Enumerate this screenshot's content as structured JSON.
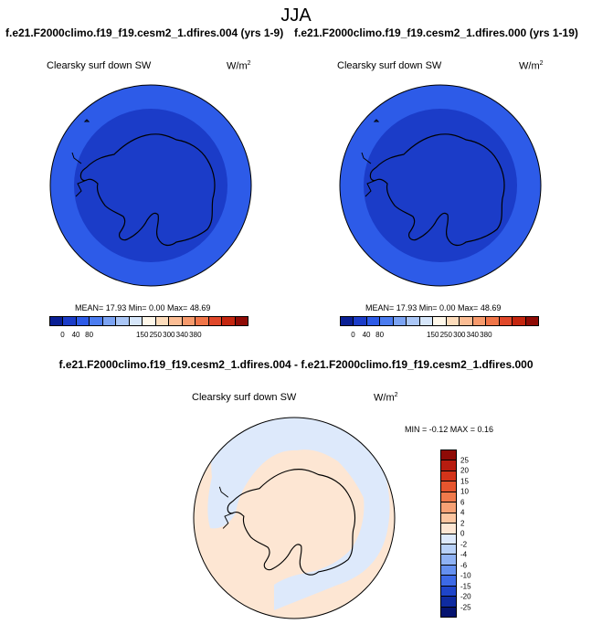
{
  "season": "JJA",
  "panels": [
    {
      "title": "f.e21.F2000climo.f19_f19.cesm2_1.dfires.004 (yrs 1-9)",
      "variable": "Clearsky surf down SW",
      "units_base": "W/m",
      "units_exp": "2",
      "stats": "MEAN=  17.93  Min=   0.00  Max=  48.69"
    },
    {
      "title": "f.e21.F2000climo.f19_f19.cesm2_1.dfires.000 (yrs 1-19)",
      "variable": "Clearsky surf down SW",
      "units_base": "W/m",
      "units_exp": "2",
      "stats": "MEAN=  17.93  Min=   0.00  Max=  48.69"
    }
  ],
  "colorbar_top": {
    "colors": [
      "#0a1f94",
      "#1b3cc8",
      "#2d5be8",
      "#4b7cf0",
      "#7ba3f3",
      "#aac6f6",
      "#d6e6fa",
      "#fff8ea",
      "#fddcbb",
      "#fbbd94",
      "#f79a6c",
      "#f07548",
      "#e0482a",
      "#c4260f",
      "#8f0b06"
    ],
    "tick_labels": [
      "0",
      "40",
      "80",
      "150",
      "250",
      "300",
      "340",
      "380"
    ]
  },
  "difference": {
    "title": "f.e21.F2000climo.f19_f19.cesm2_1.dfires.004 - f.e21.F2000climo.f19_f19.cesm2_1.dfires.000",
    "variable": "Clearsky surf down SW",
    "units_base": "W/m",
    "units_exp": "2",
    "stats": "MIN =  -0.12 MAX =   0.16"
  },
  "colorbar_diff": {
    "colors": [
      "#8f0b06",
      "#b71c0f",
      "#d4341a",
      "#e6552e",
      "#f07a4c",
      "#f6a175",
      "#fbc5a0",
      "#fde6d3",
      "#dde9fb",
      "#b8d1f8",
      "#8fb2f4",
      "#6590ef",
      "#3d6ae6",
      "#1f45c9",
      "#0f2ba0",
      "#061470"
    ],
    "labels": [
      "25",
      "20",
      "15",
      "10",
      "6",
      "4",
      "2",
      "0",
      "-2",
      "-4",
      "-6",
      "-10",
      "-15",
      "-20",
      "-25"
    ]
  },
  "map_colors": {
    "outer_ring": "#2d5be8",
    "inner_disk": "#1b3cc8",
    "diff_positive": "#fde6d3",
    "diff_negative": "#dde9fb",
    "coast": "#000000"
  }
}
